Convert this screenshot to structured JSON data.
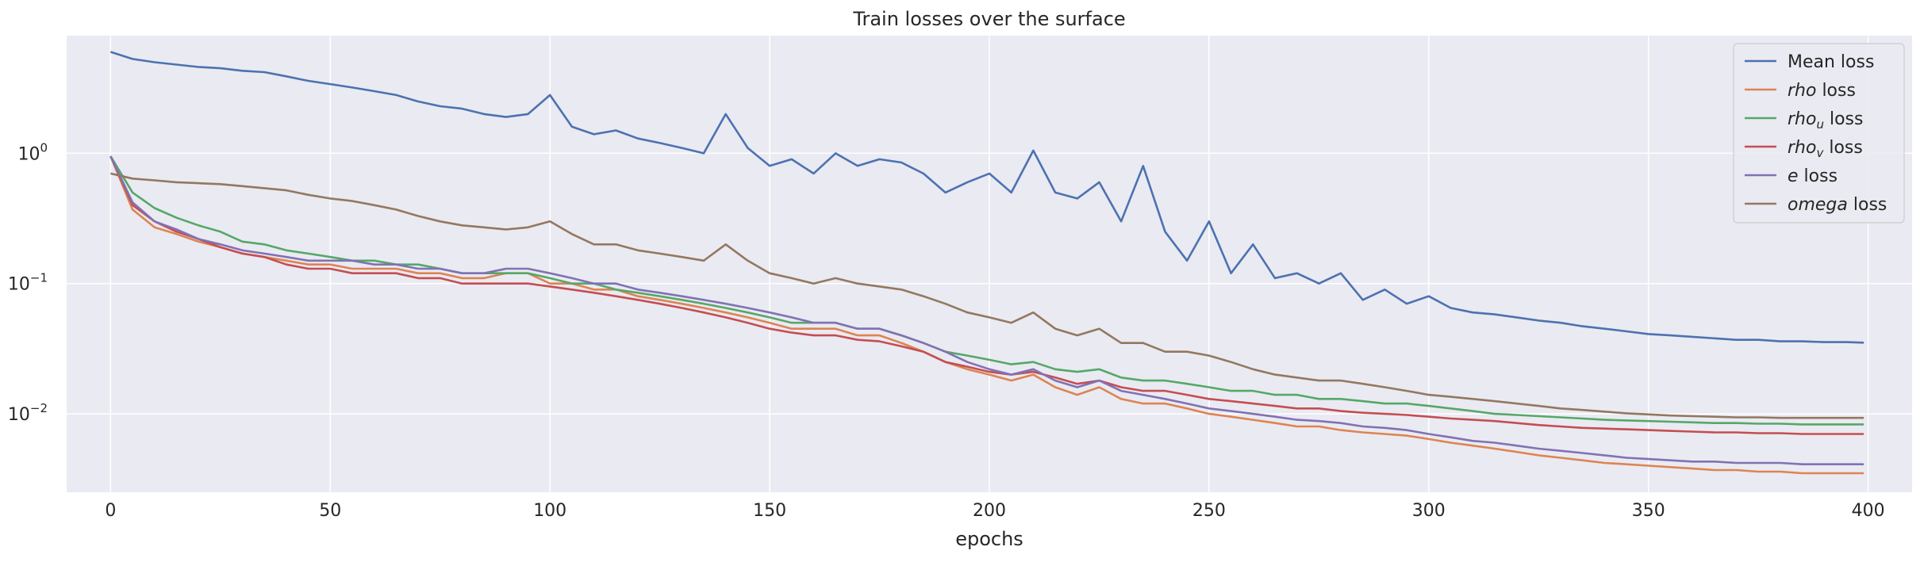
{
  "chart_data": {
    "type": "line",
    "title": "Train losses over the surface",
    "xlabel": "epochs",
    "ylabel": "",
    "xlim": [
      -10,
      410
    ],
    "ylim": [
      0.0025,
      8
    ],
    "yscale": "log",
    "grid": true,
    "legend_position": "top-right",
    "x_ticks": [
      0,
      50,
      100,
      150,
      200,
      250,
      300,
      350,
      400
    ],
    "x_tick_labels": [
      "0",
      "50",
      "100",
      "150",
      "200",
      "250",
      "300",
      "350",
      "400"
    ],
    "y_ticks": [
      0.01,
      0.1,
      1
    ],
    "y_tick_labels": [
      {
        "base": "10",
        "exp": "−2"
      },
      {
        "base": "10",
        "exp": "−1"
      },
      {
        "base": "10",
        "exp": "0"
      }
    ],
    "x": [
      0,
      5,
      10,
      15,
      20,
      25,
      30,
      35,
      40,
      45,
      50,
      55,
      60,
      65,
      70,
      75,
      80,
      85,
      90,
      95,
      100,
      105,
      110,
      115,
      120,
      125,
      130,
      135,
      140,
      145,
      150,
      155,
      160,
      165,
      170,
      175,
      180,
      185,
      190,
      195,
      200,
      205,
      210,
      215,
      220,
      225,
      230,
      235,
      240,
      245,
      250,
      255,
      260,
      265,
      270,
      275,
      280,
      285,
      290,
      295,
      300,
      305,
      310,
      315,
      320,
      325,
      330,
      335,
      340,
      345,
      350,
      355,
      360,
      365,
      370,
      375,
      380,
      385,
      390,
      395,
      399
    ],
    "series": [
      {
        "name": "Mean loss",
        "color": "#4c72b0",
        "values": [
          6.0,
          5.3,
          5.0,
          4.8,
          4.6,
          4.5,
          4.3,
          4.2,
          3.9,
          3.6,
          3.4,
          3.2,
          3.0,
          2.8,
          2.5,
          2.3,
          2.2,
          2.0,
          1.9,
          2.0,
          2.8,
          1.6,
          1.4,
          1.5,
          1.3,
          1.2,
          1.1,
          1.0,
          2.0,
          1.1,
          0.8,
          0.9,
          0.7,
          1.0,
          0.8,
          0.9,
          0.85,
          0.7,
          0.5,
          0.6,
          0.7,
          0.5,
          1.05,
          0.5,
          0.45,
          0.6,
          0.3,
          0.8,
          0.25,
          0.15,
          0.3,
          0.12,
          0.2,
          0.11,
          0.12,
          0.1,
          0.12,
          0.075,
          0.09,
          0.07,
          0.08,
          0.065,
          0.06,
          0.058,
          0.055,
          0.052,
          0.05,
          0.047,
          0.045,
          0.043,
          0.041,
          0.04,
          0.039,
          0.038,
          0.037,
          0.037,
          0.036,
          0.036,
          0.0355,
          0.0355,
          0.0352
        ]
      },
      {
        "name": "rho loss",
        "color": "#dd8452",
        "values": [
          0.95,
          0.37,
          0.27,
          0.24,
          0.21,
          0.19,
          0.17,
          0.16,
          0.15,
          0.14,
          0.14,
          0.13,
          0.13,
          0.13,
          0.12,
          0.12,
          0.11,
          0.11,
          0.12,
          0.12,
          0.1,
          0.1,
          0.09,
          0.09,
          0.08,
          0.075,
          0.07,
          0.065,
          0.06,
          0.055,
          0.05,
          0.045,
          0.045,
          0.045,
          0.04,
          0.04,
          0.035,
          0.03,
          0.025,
          0.022,
          0.02,
          0.018,
          0.02,
          0.016,
          0.014,
          0.016,
          0.013,
          0.012,
          0.012,
          0.011,
          0.01,
          0.0095,
          0.009,
          0.0085,
          0.008,
          0.008,
          0.0075,
          0.0072,
          0.007,
          0.0068,
          0.0064,
          0.006,
          0.0057,
          0.0054,
          0.0051,
          0.0048,
          0.0046,
          0.0044,
          0.0042,
          0.0041,
          0.004,
          0.0039,
          0.0038,
          0.0037,
          0.0037,
          0.0036,
          0.0036,
          0.0035,
          0.0035,
          0.0035,
          0.0035
        ]
      },
      {
        "name": "rho_u loss",
        "color": "#55a868",
        "values": [
          0.95,
          0.5,
          0.38,
          0.32,
          0.28,
          0.25,
          0.21,
          0.2,
          0.18,
          0.17,
          0.16,
          0.15,
          0.15,
          0.14,
          0.14,
          0.13,
          0.12,
          0.12,
          0.12,
          0.12,
          0.11,
          0.1,
          0.1,
          0.09,
          0.085,
          0.08,
          0.075,
          0.07,
          0.065,
          0.06,
          0.055,
          0.05,
          0.05,
          0.05,
          0.045,
          0.045,
          0.04,
          0.035,
          0.03,
          0.028,
          0.026,
          0.024,
          0.025,
          0.022,
          0.021,
          0.022,
          0.019,
          0.018,
          0.018,
          0.017,
          0.016,
          0.015,
          0.015,
          0.014,
          0.014,
          0.013,
          0.013,
          0.0125,
          0.012,
          0.012,
          0.0115,
          0.011,
          0.0105,
          0.01,
          0.0098,
          0.0096,
          0.0094,
          0.0092,
          0.009,
          0.0089,
          0.0088,
          0.0087,
          0.0086,
          0.0085,
          0.0085,
          0.0084,
          0.0084,
          0.0083,
          0.0083,
          0.0083,
          0.0083
        ]
      },
      {
        "name": "rho_v loss",
        "color": "#c44e52",
        "values": [
          0.95,
          0.4,
          0.3,
          0.25,
          0.22,
          0.19,
          0.17,
          0.16,
          0.14,
          0.13,
          0.13,
          0.12,
          0.12,
          0.12,
          0.11,
          0.11,
          0.1,
          0.1,
          0.1,
          0.1,
          0.095,
          0.09,
          0.085,
          0.08,
          0.075,
          0.07,
          0.065,
          0.06,
          0.055,
          0.05,
          0.045,
          0.042,
          0.04,
          0.04,
          0.037,
          0.036,
          0.033,
          0.03,
          0.025,
          0.023,
          0.021,
          0.02,
          0.021,
          0.019,
          0.017,
          0.018,
          0.016,
          0.015,
          0.015,
          0.014,
          0.013,
          0.0125,
          0.012,
          0.0115,
          0.011,
          0.011,
          0.0105,
          0.0102,
          0.01,
          0.0098,
          0.0095,
          0.0092,
          0.009,
          0.0088,
          0.0085,
          0.0082,
          0.008,
          0.0078,
          0.0077,
          0.0076,
          0.0075,
          0.0074,
          0.0073,
          0.0072,
          0.0072,
          0.0071,
          0.0071,
          0.007,
          0.007,
          0.007,
          0.007
        ]
      },
      {
        "name": "e loss",
        "color": "#8172b3",
        "values": [
          0.95,
          0.42,
          0.3,
          0.26,
          0.22,
          0.2,
          0.18,
          0.17,
          0.16,
          0.15,
          0.15,
          0.15,
          0.14,
          0.14,
          0.13,
          0.13,
          0.12,
          0.12,
          0.13,
          0.13,
          0.12,
          0.11,
          0.1,
          0.1,
          0.09,
          0.085,
          0.08,
          0.075,
          0.07,
          0.065,
          0.06,
          0.055,
          0.05,
          0.05,
          0.045,
          0.045,
          0.04,
          0.035,
          0.03,
          0.025,
          0.022,
          0.02,
          0.022,
          0.018,
          0.016,
          0.018,
          0.015,
          0.014,
          0.013,
          0.012,
          0.011,
          0.0105,
          0.01,
          0.0095,
          0.009,
          0.0088,
          0.0085,
          0.008,
          0.0078,
          0.0075,
          0.007,
          0.0066,
          0.0062,
          0.006,
          0.0057,
          0.0054,
          0.0052,
          0.005,
          0.0048,
          0.0046,
          0.0045,
          0.0044,
          0.0043,
          0.0043,
          0.0042,
          0.0042,
          0.0042,
          0.0041,
          0.0041,
          0.0041,
          0.0041
        ]
      },
      {
        "name": "omega loss",
        "color": "#937860",
        "values": [
          0.7,
          0.64,
          0.62,
          0.6,
          0.59,
          0.58,
          0.56,
          0.54,
          0.52,
          0.48,
          0.45,
          0.43,
          0.4,
          0.37,
          0.33,
          0.3,
          0.28,
          0.27,
          0.26,
          0.27,
          0.3,
          0.24,
          0.2,
          0.2,
          0.18,
          0.17,
          0.16,
          0.15,
          0.2,
          0.15,
          0.12,
          0.11,
          0.1,
          0.11,
          0.1,
          0.095,
          0.09,
          0.08,
          0.07,
          0.06,
          0.055,
          0.05,
          0.06,
          0.045,
          0.04,
          0.045,
          0.035,
          0.035,
          0.03,
          0.03,
          0.028,
          0.025,
          0.022,
          0.02,
          0.019,
          0.018,
          0.018,
          0.017,
          0.016,
          0.015,
          0.014,
          0.0135,
          0.013,
          0.0125,
          0.012,
          0.0115,
          0.011,
          0.0107,
          0.0104,
          0.0101,
          0.0099,
          0.0097,
          0.0096,
          0.0095,
          0.0094,
          0.0094,
          0.0093,
          0.0093,
          0.0093,
          0.0093,
          0.0093
        ]
      }
    ],
    "legend": [
      {
        "prefix": "",
        "italic": "",
        "sub": "",
        "suffix": "Mean loss"
      },
      {
        "prefix": "",
        "italic": "rho",
        "sub": "",
        "suffix": " loss"
      },
      {
        "prefix": "",
        "italic": "rho",
        "sub": "u",
        "suffix": " loss"
      },
      {
        "prefix": "",
        "italic": "rho",
        "sub": "v",
        "suffix": " loss"
      },
      {
        "prefix": "",
        "italic": "e",
        "sub": "",
        "suffix": " loss"
      },
      {
        "prefix": "",
        "italic": "omega",
        "sub": "",
        "suffix": " loss"
      }
    ],
    "colors": {
      "plot_background": "#eaeaf2",
      "grid": "#ffffff",
      "text": "#262626"
    }
  }
}
